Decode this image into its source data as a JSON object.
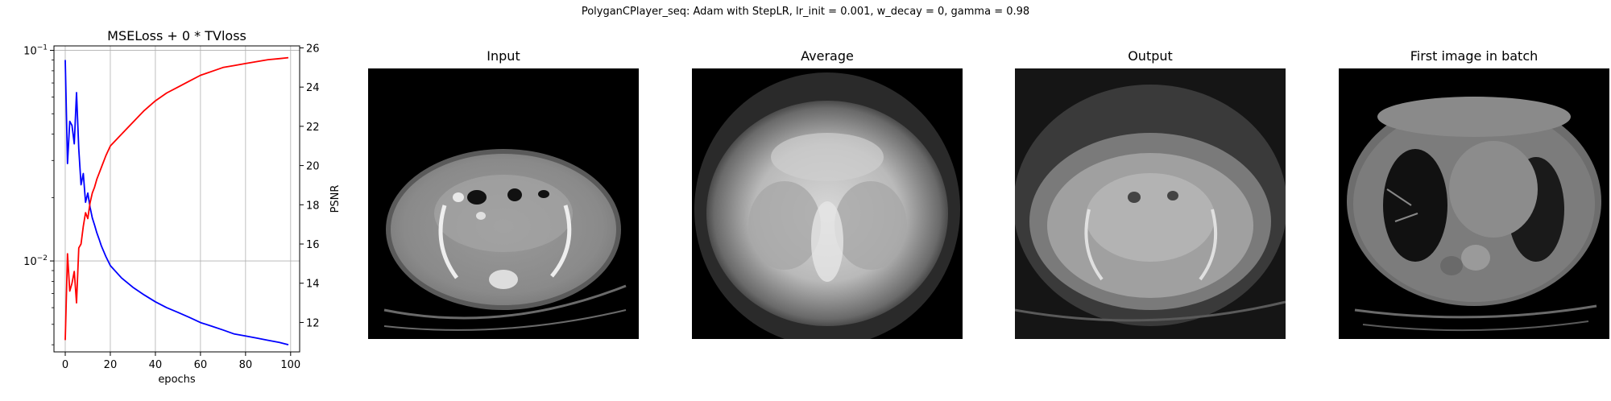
{
  "figure": {
    "suptitle": "PolyganCPlayer_seq: Adam with StepLR, lr_init = 0.001, w_decay = 0, gamma = 0.98"
  },
  "chart_data": {
    "type": "line",
    "title": "MSELoss + 0 * TVloss",
    "xlabel": "epochs",
    "ylabel_left": "",
    "ylabel_right": "PSNR",
    "x_ticks": [
      0,
      20,
      40,
      60,
      80,
      100
    ],
    "xlim": [
      -5,
      104
    ],
    "left_axis": {
      "scale": "log",
      "ylim": [
        0.0037,
        0.105
      ],
      "tick_labels": [
        "10^{-2}",
        "10^{-1}"
      ],
      "tick_values": [
        0.01,
        0.1
      ]
    },
    "right_axis": {
      "scale": "linear",
      "ylim": [
        10.5,
        26.1
      ],
      "ticks": [
        12,
        14,
        16,
        18,
        20,
        22,
        24,
        26
      ]
    },
    "grid": true,
    "series": [
      {
        "axis": "left",
        "color": "#0000ff",
        "x": [
          0,
          1,
          2,
          3,
          4,
          5,
          6,
          7,
          8,
          9,
          10,
          11,
          12,
          13,
          14,
          15,
          16,
          18,
          20,
          25,
          30,
          35,
          40,
          45,
          50,
          55,
          60,
          65,
          70,
          75,
          80,
          85,
          90,
          95,
          99
        ],
        "values": [
          0.09,
          0.029,
          0.046,
          0.044,
          0.036,
          0.063,
          0.034,
          0.023,
          0.026,
          0.019,
          0.021,
          0.018,
          0.016,
          0.0148,
          0.0136,
          0.0127,
          0.0118,
          0.0105,
          0.0095,
          0.0083,
          0.0075,
          0.0069,
          0.0064,
          0.006,
          0.0057,
          0.0054,
          0.0051,
          0.0049,
          0.0047,
          0.0045,
          0.0044,
          0.0043,
          0.0042,
          0.0041,
          0.004
        ]
      },
      {
        "axis": "right",
        "color": "#ff0000",
        "x": [
          0,
          1,
          2,
          3,
          4,
          5,
          6,
          7,
          8,
          9,
          10,
          11,
          12,
          13,
          14,
          15,
          16,
          18,
          20,
          25,
          30,
          35,
          40,
          45,
          50,
          55,
          60,
          65,
          70,
          75,
          80,
          85,
          90,
          95,
          99
        ],
        "values": [
          11.1,
          15.5,
          13.6,
          14.0,
          14.6,
          13.0,
          15.8,
          16.0,
          16.9,
          17.6,
          17.3,
          18.1,
          18.6,
          18.9,
          19.3,
          19.6,
          19.9,
          20.5,
          21.0,
          21.6,
          22.2,
          22.8,
          23.3,
          23.7,
          24.0,
          24.3,
          24.6,
          24.8,
          25.0,
          25.1,
          25.2,
          25.3,
          25.4,
          25.45,
          25.5
        ]
      }
    ]
  },
  "panels": {
    "input": "Input",
    "average": "Average",
    "output": "Output",
    "first": "First image in batch"
  }
}
